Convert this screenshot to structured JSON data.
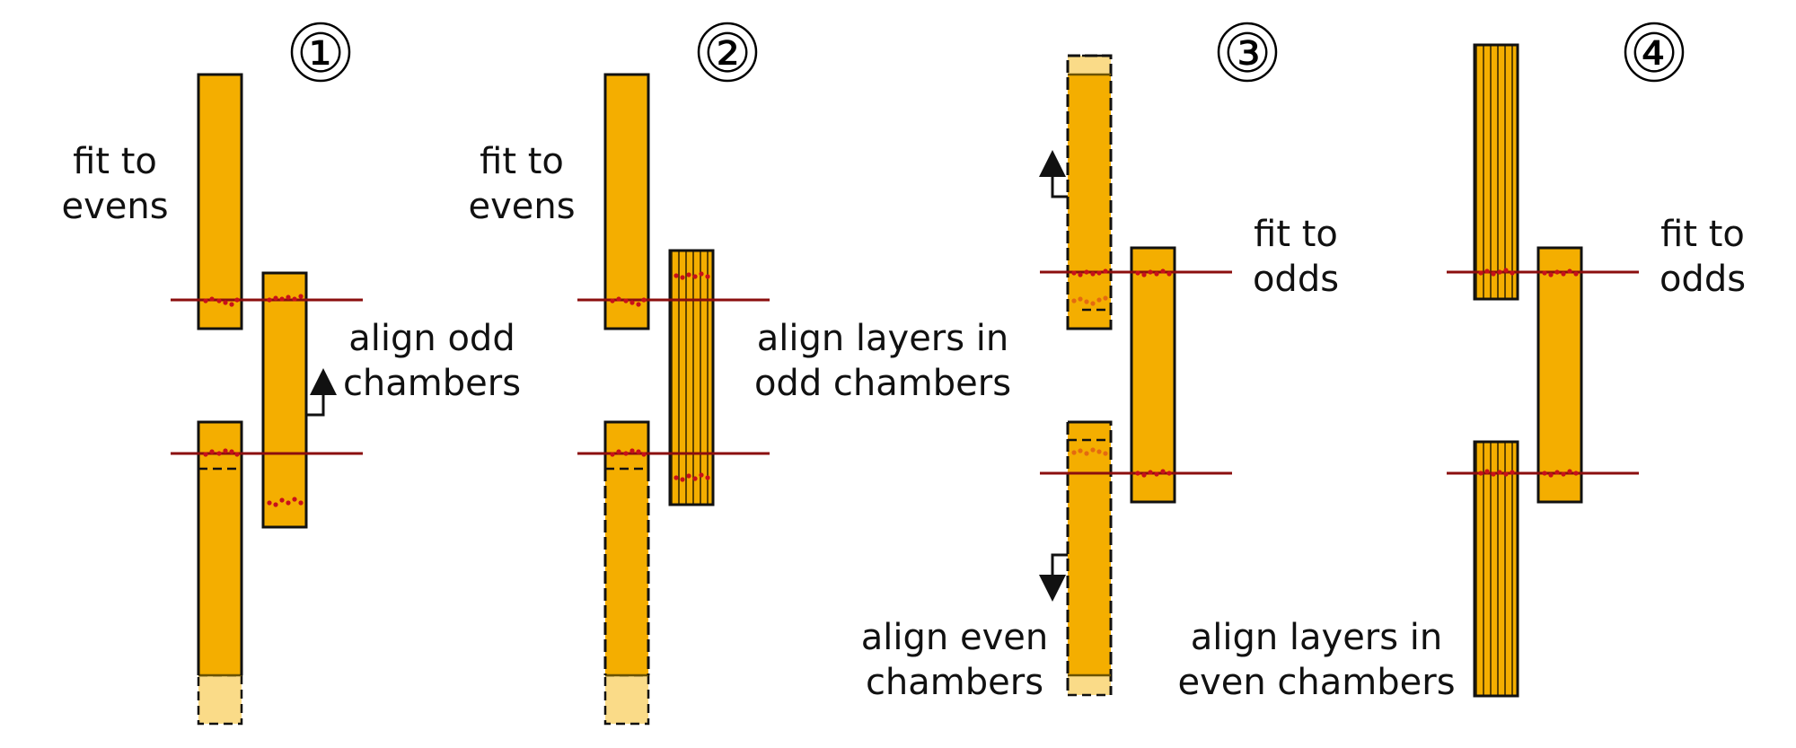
{
  "panels": [
    {
      "number": "①",
      "labels": [
        "fit to",
        "evens",
        "align odd",
        "chambers"
      ]
    },
    {
      "number": "②",
      "labels": [
        "fit to",
        "evens",
        "align layers in",
        "odd chambers"
      ]
    },
    {
      "number": "③",
      "labels": [
        "fit to",
        "odds",
        "align even",
        "chambers"
      ]
    },
    {
      "number": "④",
      "labels": [
        "fit to",
        "odds",
        "align layers in",
        "even chambers"
      ]
    }
  ],
  "colors": {
    "chamber": "#f4ae00",
    "chamber_light": "#fadb88",
    "outline": "#111111",
    "fit_line": "#8b0e0e",
    "hit_dot": "#c8101a"
  }
}
